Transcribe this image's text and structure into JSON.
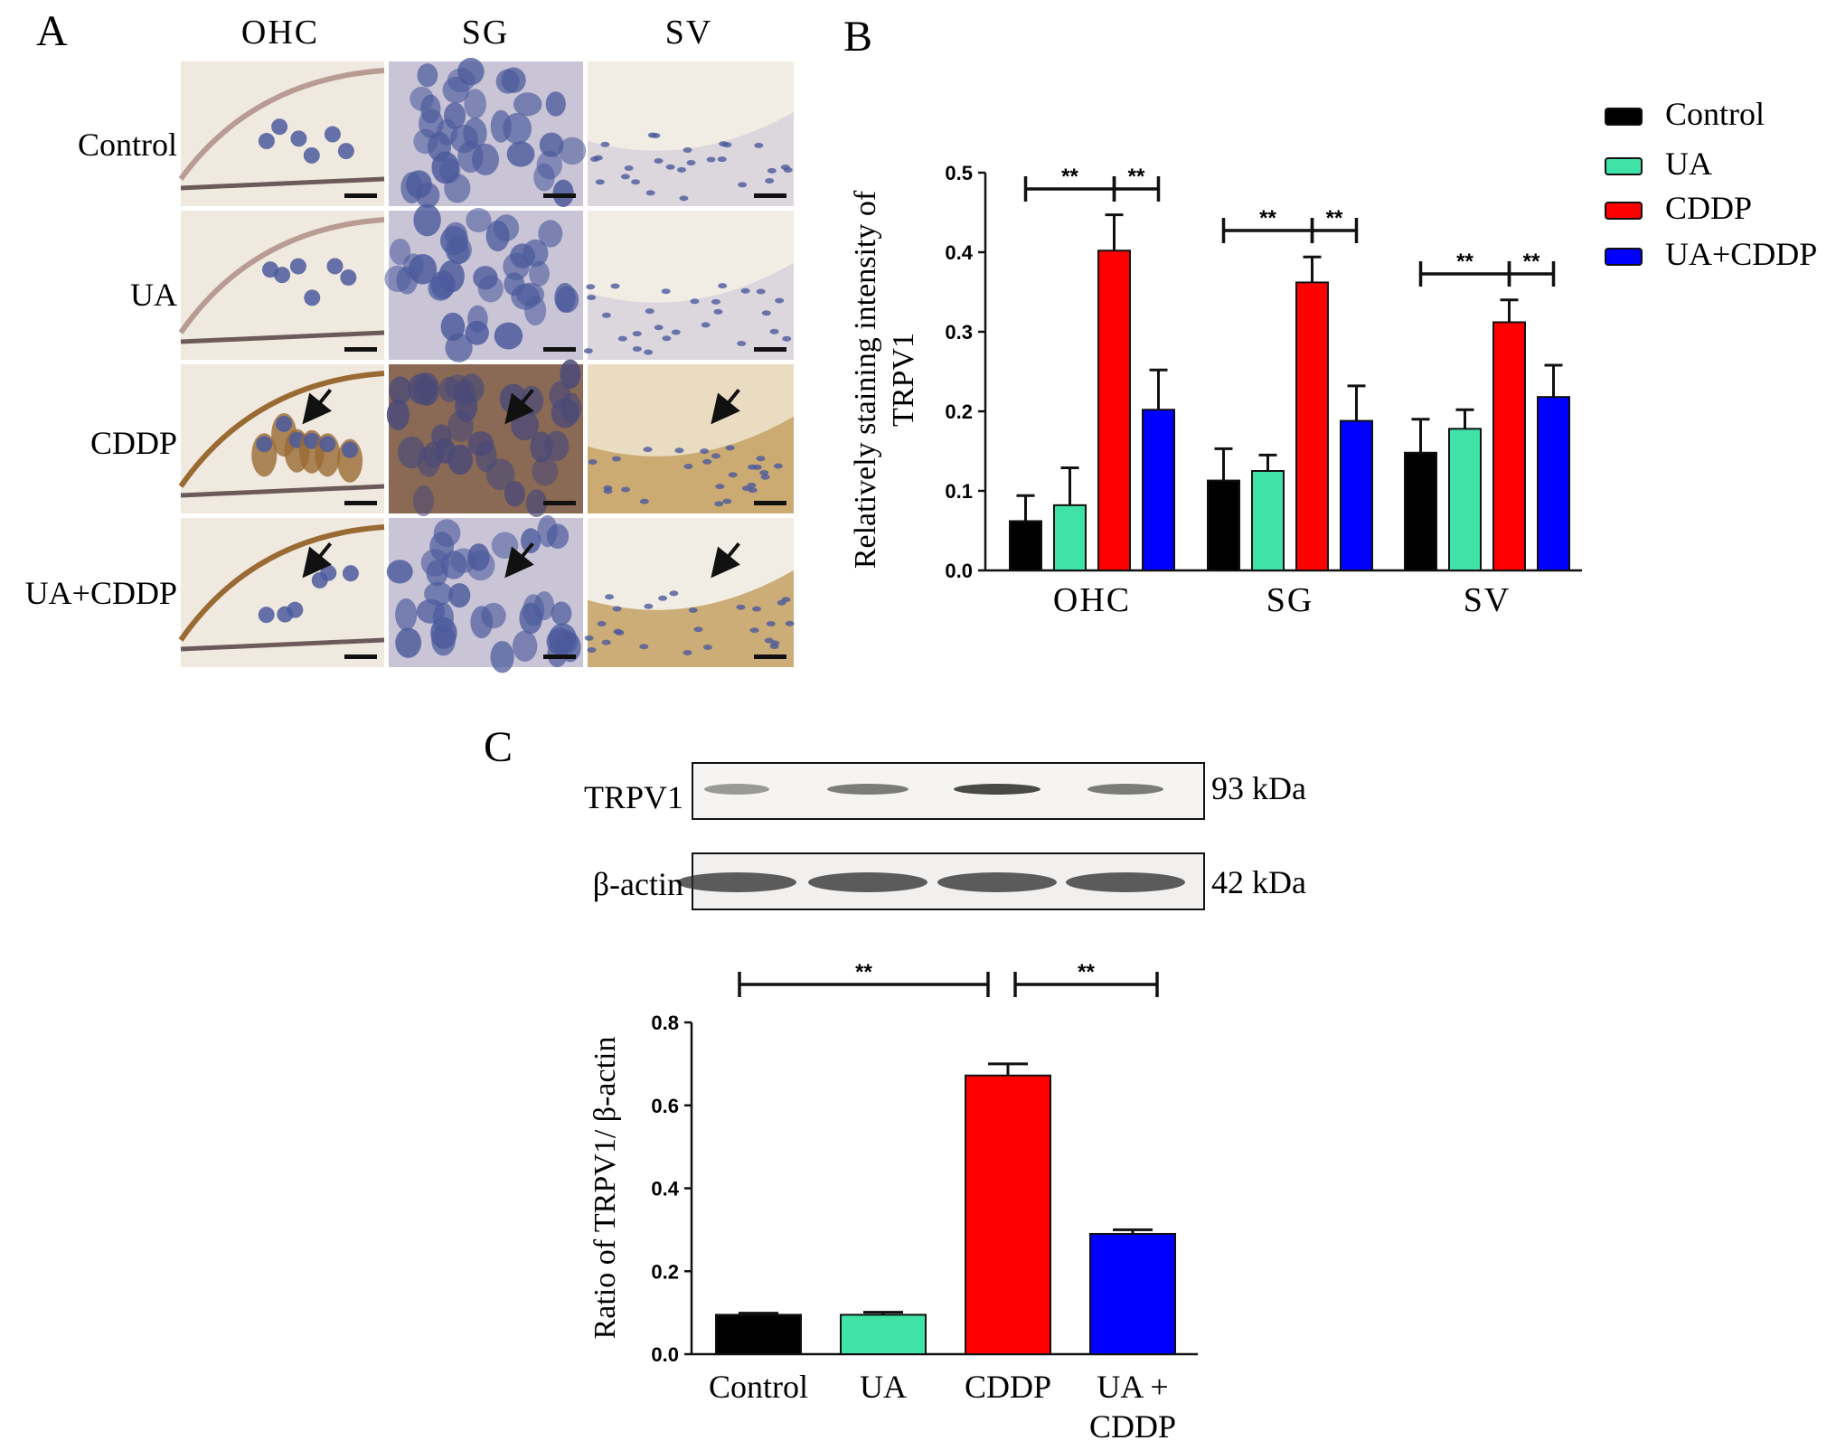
{
  "panels": {
    "a": {
      "letter": "A",
      "columns": [
        "OHC",
        "SG",
        "SV"
      ],
      "rows": [
        "Control",
        "UA",
        "CDDP",
        "UA+CDDP"
      ],
      "colors": {
        "ohc_bg": "#efe9e0",
        "sg_bg": "#c9c4d6",
        "sv_bg": "#f1ede4",
        "cddp_brown": "#9a6a33",
        "nuclei": "#4b5a9c"
      }
    },
    "b": {
      "letter": "B"
    },
    "c": {
      "letter": "C",
      "blot_rows": [
        {
          "label": "TRPV1",
          "kda": "93 kDa"
        },
        {
          "label": "β-actin",
          "kda": "42 kDa"
        }
      ]
    }
  },
  "chart_data": [
    {
      "id": "B",
      "type": "bar",
      "categories": [
        "OHC",
        "SG",
        "SV"
      ],
      "series": [
        {
          "name": "Control",
          "color": "#000000",
          "values": [
            0.062,
            0.113,
            0.148
          ],
          "errors": [
            0.032,
            0.04,
            0.042
          ]
        },
        {
          "name": "UA",
          "color": "#3fe3a8",
          "values": [
            0.082,
            0.125,
            0.178
          ],
          "errors": [
            0.047,
            0.02,
            0.024
          ]
        },
        {
          "name": "CDDP",
          "color": "#ff0000",
          "values": [
            0.402,
            0.362,
            0.312
          ],
          "errors": [
            0.045,
            0.032,
            0.028
          ]
        },
        {
          "name": "UA+CDDP",
          "color": "#0000ff",
          "values": [
            0.202,
            0.188,
            0.218
          ],
          "errors": [
            0.05,
            0.044,
            0.04
          ]
        }
      ],
      "ylabel": "Relatively staining intensity of TRPV1",
      "ylim": [
        0,
        0.5
      ],
      "yticks": [
        "0.0",
        "0.1",
        "0.2",
        "0.3",
        "0.4",
        "0.5"
      ],
      "legend_position": "top-right",
      "significance": [
        {
          "category": "OHC",
          "from": "Control",
          "to": "CDDP",
          "label": "**"
        },
        {
          "category": "OHC",
          "from": "CDDP",
          "to": "UA+CDDP",
          "label": "**"
        },
        {
          "category": "SG",
          "from": "Control",
          "to": "CDDP",
          "label": "**"
        },
        {
          "category": "SG",
          "from": "CDDP",
          "to": "UA+CDDP",
          "label": "**"
        },
        {
          "category": "SV",
          "from": "Control",
          "to": "CDDP",
          "label": "**"
        },
        {
          "category": "SV",
          "from": "CDDP",
          "to": "UA+CDDP",
          "label": "**"
        }
      ]
    },
    {
      "id": "C",
      "type": "bar",
      "categories": [
        "Control",
        "UA",
        "CDDP",
        "UA +\nCDDP"
      ],
      "values": [
        0.095,
        0.095,
        0.672,
        0.29
      ],
      "errors": [
        0.004,
        0.006,
        0.028,
        0.01
      ],
      "colors": [
        "#000000",
        "#3fe3a8",
        "#ff0000",
        "#0000ff"
      ],
      "ylabel": "Ratio of  TRPV1/ β-actin",
      "ylim": [
        0,
        0.8
      ],
      "yticks": [
        "0.0",
        "0.2",
        "0.4",
        "0.6",
        "0.8"
      ],
      "significance": [
        {
          "from": "Control",
          "to": "CDDP",
          "label": "**"
        },
        {
          "from": "CDDP",
          "to": "UA +\nCDDP",
          "label": "**"
        }
      ]
    }
  ]
}
